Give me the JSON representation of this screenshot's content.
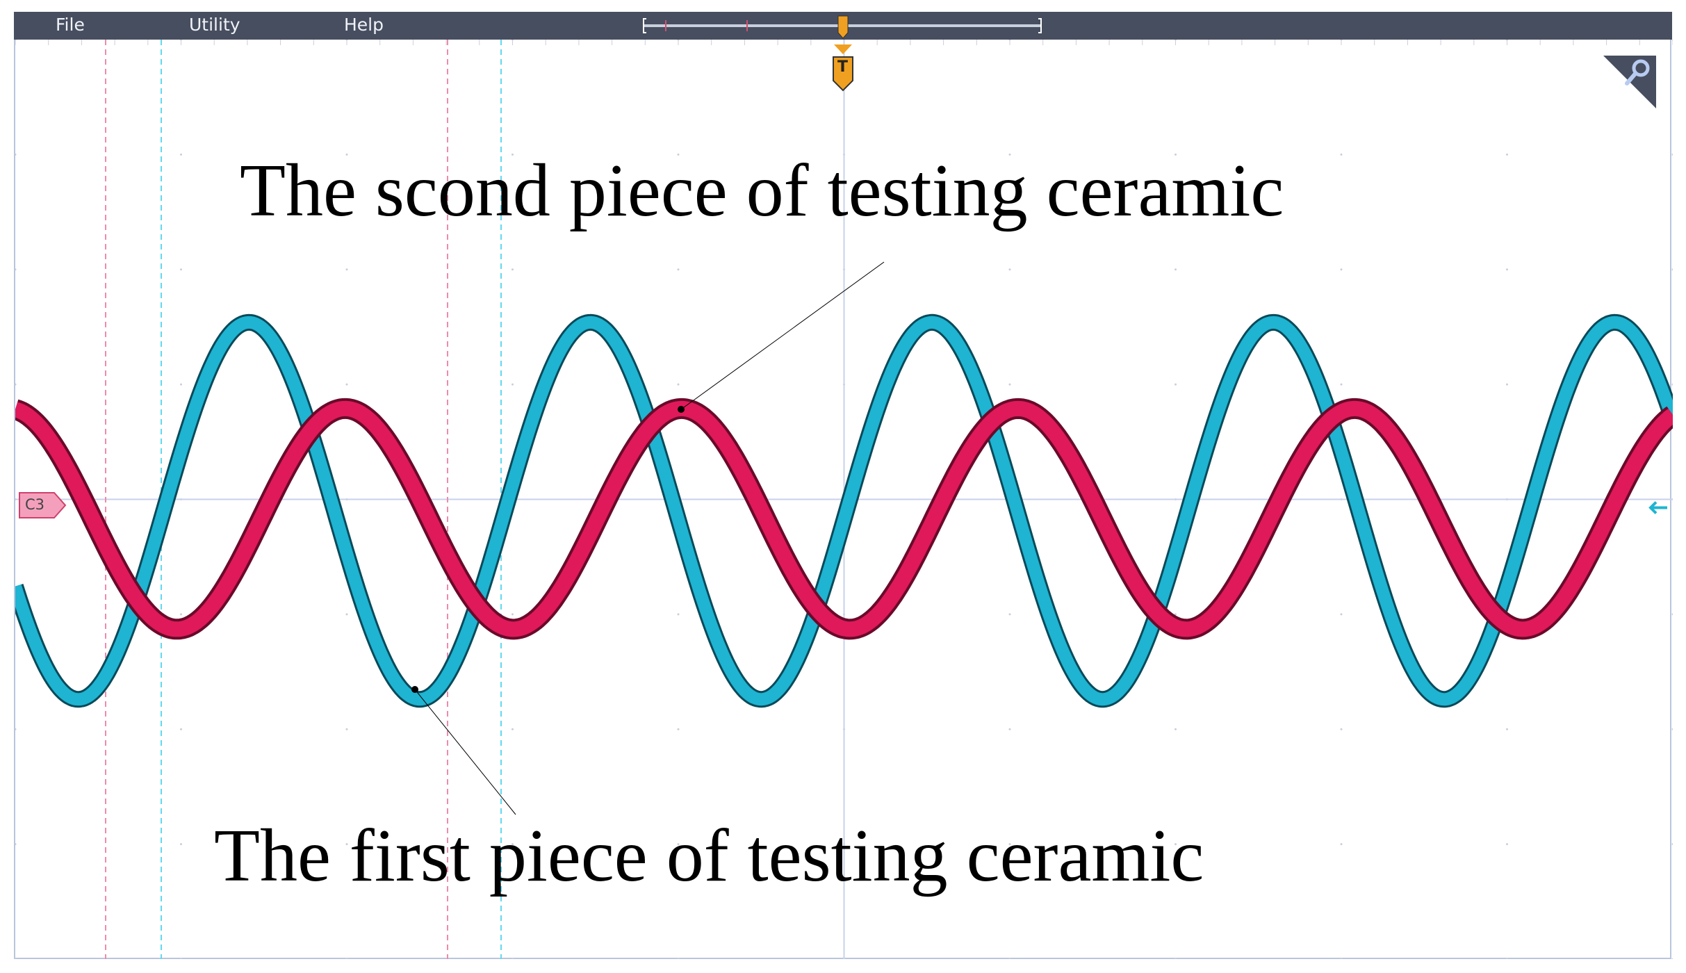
{
  "menu": {
    "file": "File",
    "utility": "Utility",
    "help": "Help"
  },
  "channel_marker": "C3",
  "trigger_label": "T",
  "colors": {
    "menubar": "#474e5f",
    "cyan_trace": "#1eb4d2",
    "red_trace": "#e0195a",
    "trigger": "#f0a020"
  },
  "chart_data": {
    "type": "line",
    "xlabel": "",
    "ylabel": "",
    "grid": true,
    "xlim_divisions": [
      -5,
      5
    ],
    "ylim_divisions": [
      -4,
      4
    ],
    "series": [
      {
        "color": "#1eb4d2",
        "form": "sine",
        "period_div": 2.06,
        "amplitude_div": 1.64,
        "offset_div": -0.1,
        "first_peak_div": -3.59
      },
      {
        "color": "#e0195a",
        "form": "sine",
        "period_div": 2.03,
        "amplitude_div": 0.96,
        "offset_div": -0.17,
        "first_peak_div": -3.01
      }
    ],
    "annotations": [
      {
        "text": "The scond piece of testing ceramic",
        "points_to": "red"
      },
      {
        "text": "The first piece of testing ceramic",
        "points_to": "cyan"
      }
    ]
  }
}
